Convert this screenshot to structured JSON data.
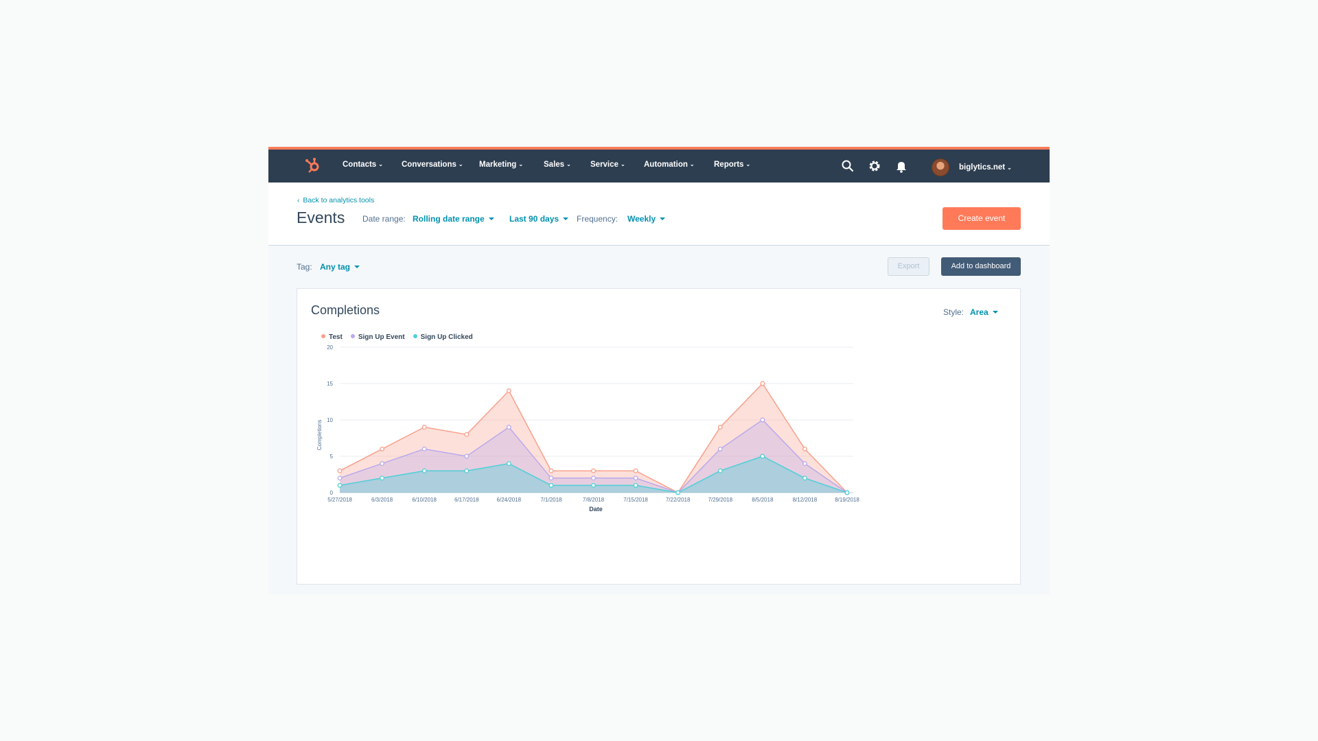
{
  "nav": {
    "items": [
      {
        "label": "Contacts"
      },
      {
        "label": "Conversations"
      },
      {
        "label": "Marketing"
      },
      {
        "label": "Sales"
      },
      {
        "label": "Service"
      },
      {
        "label": "Automation"
      },
      {
        "label": "Reports"
      }
    ],
    "account": "biglytics.net",
    "icons": [
      "hubspot-logo",
      "search-icon",
      "gear-icon",
      "bell-icon",
      "avatar"
    ]
  },
  "header": {
    "back_link": "Back to analytics tools",
    "title": "Events",
    "date_range_label": "Date range:",
    "date_range_value": "Rolling date range",
    "period_value": "Last 90 days",
    "frequency_label": "Frequency:",
    "frequency_value": "Weekly",
    "create_button": "Create event"
  },
  "toolbar": {
    "tag_label": "Tag:",
    "tag_value": "Any tag",
    "export_button": "Export",
    "dashboard_button": "Add to dashboard"
  },
  "card": {
    "title": "Completions",
    "style_label": "Style:",
    "style_value": "Area"
  },
  "colors": {
    "accent": "#ff7a59",
    "nav_bg": "#2d3e50",
    "link": "#0091ae",
    "test": "#f8a08c",
    "sign_up_event": "#b9a9ec",
    "sign_up_clicked": "#4fcfd7"
  },
  "chart_data": {
    "type": "area",
    "title": "Completions",
    "xlabel": "Date",
    "ylabel": "Completions",
    "ylim": [
      0,
      20
    ],
    "yticks": [
      0,
      5,
      10,
      15,
      20
    ],
    "grid": true,
    "legend_position": "top-left",
    "categories": [
      "5/27/2018",
      "6/3/2018",
      "6/10/2018",
      "6/17/2018",
      "6/24/2018",
      "7/1/2018",
      "7/8/2018",
      "7/15/2018",
      "7/22/2018",
      "7/29/2018",
      "8/5/2018",
      "8/12/2018",
      "8/19/2018"
    ],
    "series": [
      {
        "name": "Test",
        "color": "#f8a08c",
        "values": [
          3,
          6,
          9,
          8,
          14,
          3,
          3,
          3,
          0,
          9,
          15,
          6,
          0
        ]
      },
      {
        "name": "Sign Up Event",
        "color": "#b9a9ec",
        "values": [
          2,
          4,
          6,
          5,
          9,
          2,
          2,
          2,
          0,
          6,
          10,
          4,
          0
        ]
      },
      {
        "name": "Sign Up Clicked",
        "color": "#4fcfd7",
        "values": [
          1,
          2,
          3,
          3,
          4,
          1,
          1,
          1,
          0,
          3,
          5,
          2,
          0
        ]
      }
    ]
  }
}
